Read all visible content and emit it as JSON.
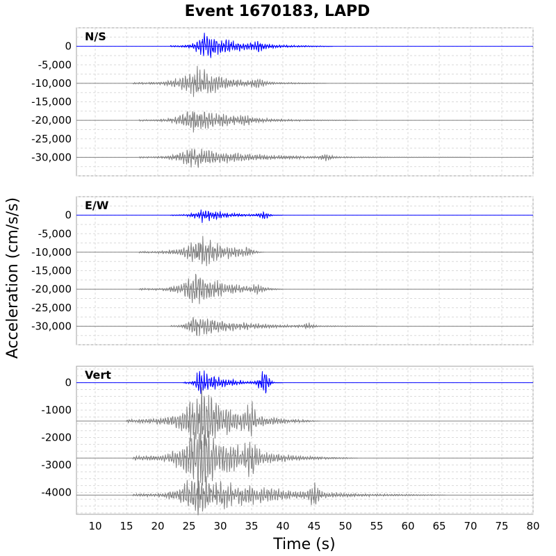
{
  "chart_data": {
    "type": "line",
    "title": "Event 1670183, LAPD",
    "xlabel": "Time (s)",
    "ylabel": "Acceleration (cm/s/s)",
    "xlim": [
      7,
      80
    ],
    "x_ticks": [
      10,
      15,
      20,
      25,
      30,
      35,
      40,
      45,
      50,
      55,
      60,
      65,
      70,
      75,
      80
    ],
    "x_tick_labels": [
      "10",
      "15",
      "20",
      "25",
      "30",
      "35",
      "40",
      "45",
      "50",
      "55",
      "60",
      "65",
      "70",
      "75",
      "80"
    ],
    "grid": true,
    "colors": {
      "primary_trace": "#0000ff",
      "other_traces": "#808080",
      "frame": "#a0a0a0"
    },
    "panels": [
      {
        "label": "N/S",
        "ylim": [
          -35000,
          5000
        ],
        "y_ticks": [
          0,
          -5000,
          -10000,
          -15000,
          -20000,
          -25000,
          -30000
        ],
        "y_tick_labels": [
          "0",
          "-5,000",
          "-10,000",
          "-15,000",
          "-20,000",
          "-25,000",
          "-30,000"
        ],
        "series": [
          {
            "offset": 0,
            "color": "#0000ff",
            "start": 22,
            "end": 48,
            "peak_time": 27.5,
            "peak_amp": 3600,
            "decay": 5.5,
            "late_burst_time": 36,
            "late_burst_amp": 1000
          },
          {
            "offset": -10000,
            "color": "#808080",
            "start": 16,
            "end": 47,
            "peak_time": 26,
            "peak_amp": 4500,
            "decay": 5,
            "late_burst_time": 36,
            "late_burst_amp": 1300
          },
          {
            "offset": -20000,
            "color": "#808080",
            "start": 17,
            "end": 52,
            "peak_time": 25.5,
            "peak_amp": 3800,
            "decay": 6,
            "late_burst_time": 34,
            "late_burst_amp": 900
          },
          {
            "offset": -30000,
            "color": "#808080",
            "start": 17,
            "end": 70,
            "peak_time": 25,
            "peak_amp": 3000,
            "decay": 9,
            "late_burst_time": 47,
            "late_burst_amp": 800
          }
        ]
      },
      {
        "label": "E/W",
        "ylim": [
          -35000,
          5000
        ],
        "y_ticks": [
          0,
          -5000,
          -10000,
          -15000,
          -20000,
          -25000,
          -30000
        ],
        "y_tick_labels": [
          "0",
          "-5,000",
          "-10,000",
          "-15,000",
          "-20,000",
          "-25,000",
          "-30,000"
        ],
        "series": [
          {
            "offset": 0,
            "color": "#0000ff",
            "start": 22,
            "end": 40,
            "peak_time": 27,
            "peak_amp": 2000,
            "decay": 4,
            "late_burst_time": 37,
            "late_burst_amp": 900
          },
          {
            "offset": -10000,
            "color": "#808080",
            "start": 17,
            "end": 37,
            "peak_time": 27,
            "peak_amp": 4800,
            "decay": 4,
            "late_burst_time": 34,
            "late_burst_amp": 700
          },
          {
            "offset": -20000,
            "color": "#808080",
            "start": 17,
            "end": 40,
            "peak_time": 26,
            "peak_amp": 4500,
            "decay": 5,
            "late_burst_time": 36,
            "late_burst_amp": 800
          },
          {
            "offset": -30000,
            "color": "#808080",
            "start": 22,
            "end": 55,
            "peak_time": 25.5,
            "peak_amp": 3200,
            "decay": 7,
            "late_burst_time": 44,
            "late_burst_amp": 700
          }
        ]
      },
      {
        "label": "Vert",
        "ylim": [
          -4800,
          600
        ],
        "y_ticks": [
          0,
          -1000,
          -2000,
          -3000,
          -4000
        ],
        "y_tick_labels": [
          "0",
          "-1000",
          "-2000",
          "-3000",
          "-4000"
        ],
        "series": [
          {
            "offset": 0,
            "color": "#0000ff",
            "start": 24,
            "end": 40,
            "peak_time": 26.5,
            "peak_amp": 520,
            "decay": 3.5,
            "late_burst_time": 37,
            "late_burst_amp": 500
          },
          {
            "offset": -1400,
            "color": "#808080",
            "start": 15,
            "end": 46,
            "peak_time": 27,
            "peak_amp": 1300,
            "decay": 5,
            "late_burst_time": 35,
            "late_burst_amp": 400
          },
          {
            "offset": -2750,
            "color": "#808080",
            "start": 16,
            "end": 52,
            "peak_time": 26.5,
            "peak_amp": 1300,
            "decay": 6,
            "late_burst_time": 35,
            "late_burst_amp": 500
          },
          {
            "offset": -4100,
            "color": "#808080",
            "start": 16,
            "end": 66,
            "peak_time": 26,
            "peak_amp": 800,
            "decay": 10,
            "late_burst_time": 45,
            "late_burst_amp": 350
          }
        ]
      }
    ]
  }
}
